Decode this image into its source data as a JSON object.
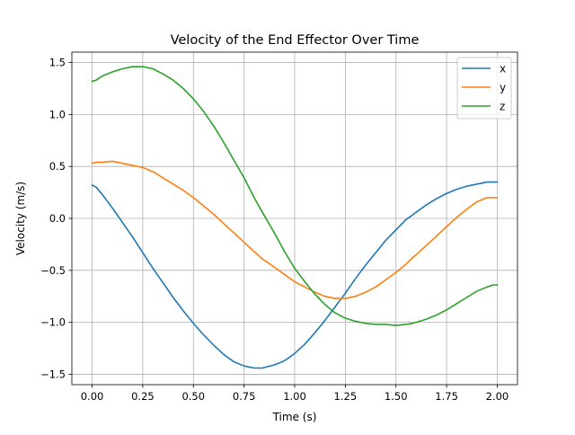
{
  "chart_data": {
    "type": "line",
    "title": "Velocity of the End Effector Over Time",
    "xlabel": "Time (s)",
    "ylabel": "Velocity (m/s)",
    "xlim": [
      -0.1,
      2.1
    ],
    "ylim": [
      -1.6,
      1.6
    ],
    "x_ticks": [
      0.0,
      0.25,
      0.5,
      0.75,
      1.0,
      1.25,
      1.5,
      1.75,
      2.0
    ],
    "x_tick_labels": [
      "0.00",
      "0.25",
      "0.50",
      "0.75",
      "1.00",
      "1.25",
      "1.50",
      "1.75",
      "2.00"
    ],
    "y_ticks": [
      -1.5,
      -1.0,
      -0.5,
      0.0,
      0.5,
      1.0,
      1.5
    ],
    "y_tick_labels": [
      "−1.5",
      "−1.0",
      "−0.5",
      "0.0",
      "0.5",
      "1.0",
      "1.5"
    ],
    "grid": true,
    "legend_position": "top-right",
    "x": [
      0.0,
      0.02,
      0.05,
      0.1,
      0.15,
      0.2,
      0.25,
      0.3,
      0.35,
      0.4,
      0.45,
      0.5,
      0.55,
      0.6,
      0.65,
      0.7,
      0.75,
      0.8,
      0.84,
      0.9,
      0.95,
      1.0,
      1.05,
      1.1,
      1.15,
      1.2,
      1.25,
      1.3,
      1.35,
      1.4,
      1.45,
      1.5,
      1.55,
      1.58,
      1.6,
      1.65,
      1.7,
      1.75,
      1.8,
      1.85,
      1.9,
      1.95,
      1.98,
      2.0
    ],
    "series": [
      {
        "name": "x",
        "color": "#1f77b4",
        "values": [
          0.32,
          0.3,
          0.23,
          0.1,
          -0.04,
          -0.18,
          -0.33,
          -0.48,
          -0.62,
          -0.76,
          -0.89,
          -1.01,
          -1.12,
          -1.22,
          -1.31,
          -1.38,
          -1.42,
          -1.44,
          -1.44,
          -1.41,
          -1.37,
          -1.3,
          -1.21,
          -1.1,
          -0.98,
          -0.85,
          -0.72,
          -0.58,
          -0.45,
          -0.33,
          -0.21,
          -0.11,
          -0.01,
          0.03,
          0.06,
          0.13,
          0.19,
          0.24,
          0.28,
          0.31,
          0.33,
          0.35,
          0.35,
          0.35
        ]
      },
      {
        "name": "y",
        "color": "#ff7f0e",
        "values": [
          0.53,
          0.54,
          0.54,
          0.55,
          0.53,
          0.51,
          0.49,
          0.45,
          0.39,
          0.33,
          0.27,
          0.2,
          0.12,
          0.04,
          -0.05,
          -0.14,
          -0.23,
          -0.32,
          -0.39,
          -0.47,
          -0.54,
          -0.61,
          -0.66,
          -0.71,
          -0.75,
          -0.77,
          -0.77,
          -0.75,
          -0.71,
          -0.66,
          -0.59,
          -0.52,
          -0.44,
          -0.38,
          -0.35,
          -0.26,
          -0.17,
          -0.08,
          0.01,
          0.09,
          0.16,
          0.2,
          0.2,
          0.2
        ]
      },
      {
        "name": "z",
        "color": "#2ca02c",
        "values": [
          1.32,
          1.33,
          1.37,
          1.41,
          1.44,
          1.46,
          1.46,
          1.44,
          1.39,
          1.33,
          1.25,
          1.15,
          1.03,
          0.89,
          0.73,
          0.56,
          0.39,
          0.2,
          0.06,
          -0.14,
          -0.32,
          -0.48,
          -0.61,
          -0.73,
          -0.83,
          -0.91,
          -0.96,
          -0.99,
          -1.01,
          -1.02,
          -1.02,
          -1.03,
          -1.02,
          -1.01,
          -1.0,
          -0.97,
          -0.93,
          -0.88,
          -0.82,
          -0.76,
          -0.7,
          -0.66,
          -0.64,
          -0.64
        ]
      }
    ]
  }
}
